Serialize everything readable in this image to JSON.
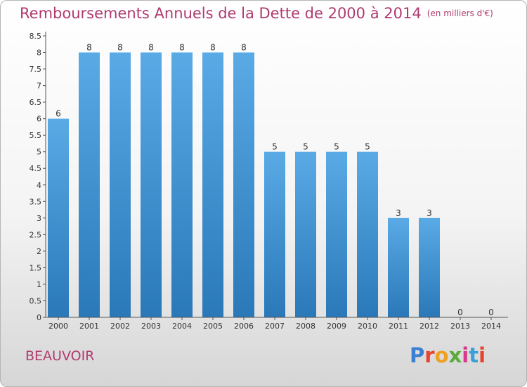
{
  "title": "Remboursements Annuels de la Dette de 2000 à 2014",
  "unit": "(en milliers d'€)",
  "commune": "BEAUVOIR",
  "brand": {
    "text": "Proxiti",
    "letter_colors": [
      "#3a7fd0",
      "#e8432f",
      "#f0a020",
      "#5aab3c",
      "#d63a8a",
      "#3aa0d8",
      "#e8432f"
    ]
  },
  "colors": {
    "title": "#b03a6e",
    "bar_light": "#5aaae6",
    "bar_dark": "#2a78b8"
  },
  "chart_data": {
    "type": "bar",
    "categories": [
      "2000",
      "2001",
      "2002",
      "2003",
      "2004",
      "2005",
      "2006",
      "2007",
      "2008",
      "2009",
      "2010",
      "2011",
      "2012",
      "2013",
      "2014"
    ],
    "values": [
      6,
      8,
      8,
      8,
      8,
      8,
      8,
      5,
      5,
      5,
      5,
      3,
      3,
      0,
      0
    ],
    "data_labels": [
      "6",
      "8",
      "8",
      "8",
      "8",
      "8",
      "8",
      "5",
      "5",
      "5",
      "5",
      "3",
      "3",
      "0",
      "0"
    ],
    "title": "Remboursements Annuels de la Dette de 2000 à 2014",
    "xlabel": "",
    "ylabel": "",
    "ylim": [
      0,
      8.5
    ],
    "yticks": [
      "0",
      "0.5",
      "1",
      "1.5",
      "2",
      "2.5",
      "3",
      "3.5",
      "4",
      "4.5",
      "5",
      "5.5",
      "6",
      "6.5",
      "7",
      "7.5",
      "8",
      "8.5"
    ],
    "grid": false,
    "legend": "none"
  }
}
